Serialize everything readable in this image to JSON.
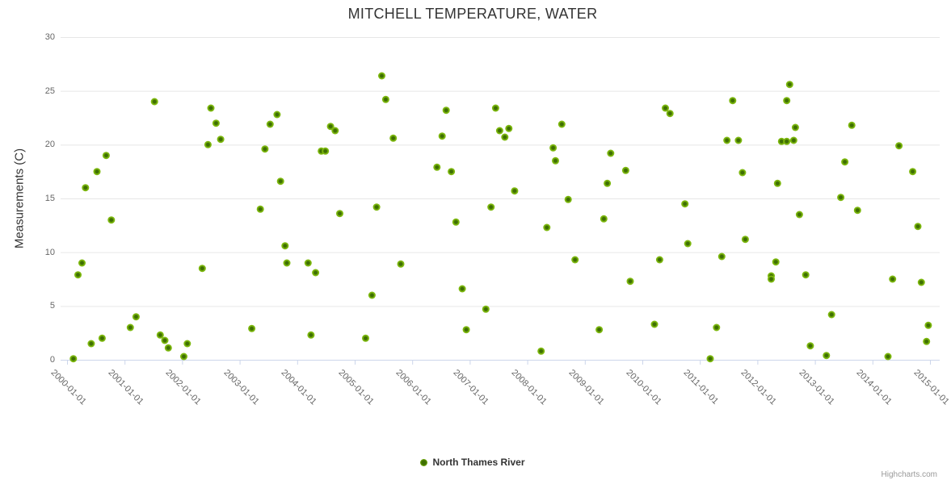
{
  "title": "MITCHELL TEMPERATURE, WATER",
  "credits": "Highcharts.com",
  "legend": {
    "series_label": "North Thames River"
  },
  "chart_data": {
    "type": "scatter",
    "title": "MITCHELL TEMPERATURE, WATER",
    "xlabel": "",
    "ylabel": "Measurements (C)",
    "x_tick_labels": [
      "2000-01-01",
      "2001-01-01",
      "2002-01-01",
      "2003-01-01",
      "2004-01-01",
      "2005-01-01",
      "2006-01-01",
      "2007-01-01",
      "2008-01-01",
      "2009-01-01",
      "2010-01-01",
      "2011-01-01",
      "2012-01-01",
      "2013-01-01",
      "2014-01-01",
      "2015-01-01"
    ],
    "x_range_years": [
      2000,
      2015
    ],
    "y_ticks": [
      0,
      5,
      10,
      15,
      20,
      25,
      30
    ],
    "ylim": [
      0,
      30
    ],
    "grid": "horizontal-only",
    "legend_position": "bottom-center",
    "colors": {
      "marker_outer": "#7db80e",
      "marker_center": "#3e6f02",
      "gridline": "#e6e6e6",
      "axis_line": "#ccd6eb",
      "tick_label": "#666666",
      "title_text": "#333333",
      "credits_text": "#999999"
    },
    "series": [
      {
        "name": "North Thames River",
        "points_format": "[year_decimal, measurement_celsius]",
        "points": [
          [
            2000.11,
            0.1
          ],
          [
            2000.19,
            7.9
          ],
          [
            2000.26,
            9.0
          ],
          [
            2000.32,
            16.0
          ],
          [
            2000.42,
            1.5
          ],
          [
            2000.52,
            17.5
          ],
          [
            2000.61,
            2.0
          ],
          [
            2000.68,
            19.0
          ],
          [
            2000.77,
            13.0
          ],
          [
            2001.1,
            3.0
          ],
          [
            2001.2,
            4.0
          ],
          [
            2001.52,
            24.0
          ],
          [
            2001.62,
            2.3
          ],
          [
            2001.7,
            1.8
          ],
          [
            2001.76,
            1.1
          ],
          [
            2002.03,
            0.3
          ],
          [
            2002.09,
            1.5
          ],
          [
            2002.35,
            8.5
          ],
          [
            2002.45,
            20.0
          ],
          [
            2002.5,
            23.4
          ],
          [
            2002.59,
            22.0
          ],
          [
            2002.67,
            20.5
          ],
          [
            2003.21,
            2.9
          ],
          [
            2003.36,
            14.0
          ],
          [
            2003.44,
            19.6
          ],
          [
            2003.53,
            21.9
          ],
          [
            2003.65,
            22.8
          ],
          [
            2003.71,
            16.6
          ],
          [
            2003.79,
            10.6
          ],
          [
            2003.82,
            9.0
          ],
          [
            2004.19,
            9.0
          ],
          [
            2004.24,
            2.3
          ],
          [
            2004.32,
            8.1
          ],
          [
            2004.42,
            19.4
          ],
          [
            2004.49,
            19.4
          ],
          [
            2004.58,
            21.7
          ],
          [
            2004.66,
            21.3
          ],
          [
            2004.74,
            13.6
          ],
          [
            2005.19,
            2.0
          ],
          [
            2005.3,
            6.0
          ],
          [
            2005.38,
            14.2
          ],
          [
            2005.47,
            26.4
          ],
          [
            2005.54,
            24.2
          ],
          [
            2005.67,
            20.6
          ],
          [
            2005.8,
            8.9
          ],
          [
            2006.43,
            17.9
          ],
          [
            2006.52,
            20.8
          ],
          [
            2006.59,
            23.2
          ],
          [
            2006.68,
            17.5
          ],
          [
            2006.76,
            12.8
          ],
          [
            2006.87,
            6.6
          ],
          [
            2006.94,
            2.8
          ],
          [
            2007.28,
            4.7
          ],
          [
            2007.37,
            14.2
          ],
          [
            2007.45,
            23.4
          ],
          [
            2007.52,
            21.3
          ],
          [
            2007.61,
            20.7
          ],
          [
            2007.68,
            21.5
          ],
          [
            2007.78,
            15.7
          ],
          [
            2008.24,
            0.8
          ],
          [
            2008.34,
            12.3
          ],
          [
            2008.45,
            19.7
          ],
          [
            2008.49,
            18.5
          ],
          [
            2008.6,
            21.9
          ],
          [
            2008.71,
            14.9
          ],
          [
            2008.83,
            9.3
          ],
          [
            2009.25,
            2.8
          ],
          [
            2009.33,
            13.1
          ],
          [
            2009.39,
            16.4
          ],
          [
            2009.45,
            19.2
          ],
          [
            2009.71,
            17.6
          ],
          [
            2009.79,
            7.3
          ],
          [
            2010.21,
            3.3
          ],
          [
            2010.3,
            9.3
          ],
          [
            2010.4,
            23.4
          ],
          [
            2010.48,
            22.9
          ],
          [
            2010.74,
            14.5
          ],
          [
            2010.79,
            10.8
          ],
          [
            2011.18,
            0.1
          ],
          [
            2011.29,
            3.0
          ],
          [
            2011.38,
            9.6
          ],
          [
            2011.47,
            20.4
          ],
          [
            2011.57,
            24.1
          ],
          [
            2011.67,
            20.4
          ],
          [
            2011.74,
            17.4
          ],
          [
            2011.79,
            11.2
          ],
          [
            2012.24,
            7.8
          ],
          [
            2012.24,
            7.5
          ],
          [
            2012.32,
            9.1
          ],
          [
            2012.35,
            16.4
          ],
          [
            2012.42,
            20.3
          ],
          [
            2012.51,
            20.3
          ],
          [
            2012.51,
            24.1
          ],
          [
            2012.56,
            25.6
          ],
          [
            2012.63,
            20.4
          ],
          [
            2012.66,
            21.6
          ],
          [
            2012.73,
            13.5
          ],
          [
            2012.84,
            7.9
          ],
          [
            2012.92,
            1.3
          ],
          [
            2013.2,
            0.4
          ],
          [
            2013.29,
            4.2
          ],
          [
            2013.45,
            15.1
          ],
          [
            2013.52,
            18.4
          ],
          [
            2013.64,
            21.8
          ],
          [
            2013.74,
            13.9
          ],
          [
            2014.27,
            0.3
          ],
          [
            2014.35,
            7.5
          ],
          [
            2014.46,
            19.9
          ],
          [
            2014.7,
            17.5
          ],
          [
            2014.79,
            12.4
          ],
          [
            2014.85,
            7.2
          ],
          [
            2014.94,
            1.7
          ],
          [
            2014.97,
            3.2
          ]
        ]
      }
    ]
  }
}
